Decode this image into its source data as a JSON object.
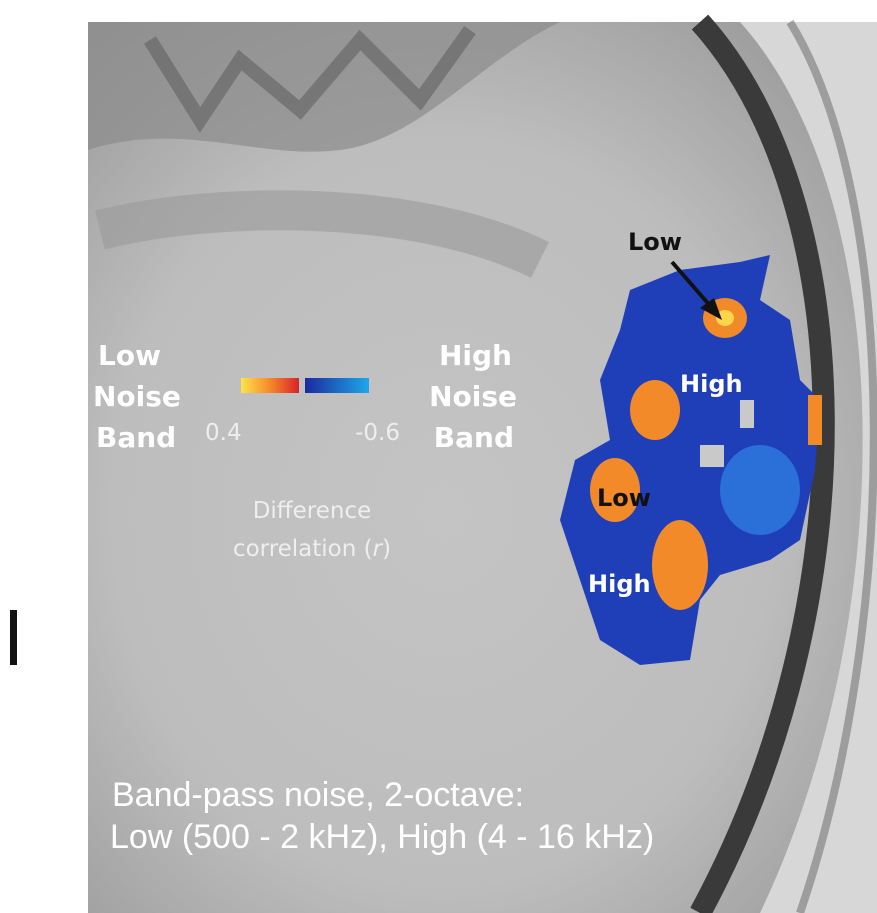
{
  "legend": {
    "left_label": [
      "Low",
      "Noise",
      "Band"
    ],
    "right_label": [
      "High",
      "Noise",
      "Band"
    ],
    "scale_start_label": "0.4",
    "scale_end_label": "-0.6",
    "title": {
      "line1": "Difference",
      "line2_before": "correlation (",
      "line2_symbol": "r",
      "line2_after": ")"
    }
  },
  "annotations": [
    {
      "label": "Low"
    },
    {
      "label": "High"
    },
    {
      "label": "Low"
    },
    {
      "label": "High"
    }
  ],
  "caption": [
    "Band-pass noise, 2-octave:",
    "Low (500 - 2 kHz), High (4 - 16 kHz)"
  ]
}
